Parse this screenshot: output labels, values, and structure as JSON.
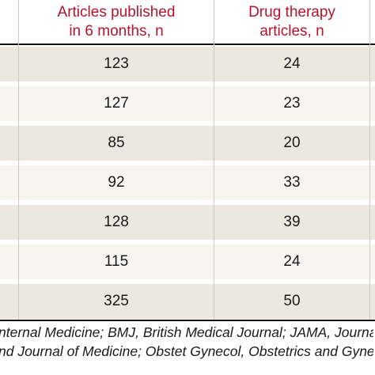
{
  "table": {
    "headers": [
      {
        "line1": "Articles published",
        "line2": "in 6 months, n"
      },
      {
        "line1": "Drug therapy",
        "line2": "articles, n"
      }
    ],
    "rows": [
      {
        "published": "123",
        "drug": "24"
      },
      {
        "published": "127",
        "drug": "23"
      },
      {
        "published": "85",
        "drug": "20"
      },
      {
        "published": "92",
        "drug": "33"
      },
      {
        "published": "128",
        "drug": "39"
      },
      {
        "published": "115",
        "drug": "24"
      },
      {
        "published": "325",
        "drug": "50"
      }
    ]
  },
  "footnote": {
    "line1": "nternal Medicine; BMJ, British Medical Journal; JAMA, Journal of",
    "line2": "nd Journal of Medicine; Obstet Gynecol, Obstetrics and Gynecolo"
  },
  "colors": {
    "header_text": "#b5142d",
    "row_shaded": "#ebe8df",
    "row_light": "#f6f5f0"
  }
}
